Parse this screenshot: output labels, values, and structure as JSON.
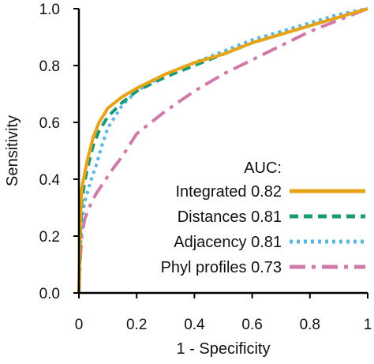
{
  "chart_data": {
    "type": "line",
    "title": "",
    "xlabel": "1 - Specificity",
    "ylabel": "Sensitivity",
    "xlim": [
      0,
      1
    ],
    "ylim": [
      0,
      1
    ],
    "x_ticks": [
      "0",
      "0.2",
      "0.4",
      "0.6",
      "0.8",
      "1"
    ],
    "y_ticks": [
      "0.0",
      "0.2",
      "0.4",
      "0.6",
      "0.8",
      "1.0"
    ],
    "grid": false,
    "legend_title": "AUC:",
    "legend_position": "bottom-right",
    "series": [
      {
        "name": "Integrated 0.82",
        "color": "#E8A317",
        "dash": "solid",
        "points": [
          [
            0,
            0
          ],
          [
            0.005,
            0.25
          ],
          [
            0.01,
            0.37
          ],
          [
            0.02,
            0.42
          ],
          [
            0.03,
            0.47
          ],
          [
            0.05,
            0.55
          ],
          [
            0.07,
            0.6
          ],
          [
            0.1,
            0.65
          ],
          [
            0.15,
            0.69
          ],
          [
            0.2,
            0.72
          ],
          [
            0.3,
            0.77
          ],
          [
            0.4,
            0.81
          ],
          [
            0.5,
            0.84
          ],
          [
            0.6,
            0.88
          ],
          [
            0.7,
            0.91
          ],
          [
            0.8,
            0.94
          ],
          [
            0.9,
            0.97
          ],
          [
            1.0,
            1.0
          ]
        ]
      },
      {
        "name": "Distances 0.81",
        "color": "#1A9A73",
        "dash": "dashed",
        "points": [
          [
            0,
            0
          ],
          [
            0.005,
            0.2
          ],
          [
            0.01,
            0.32
          ],
          [
            0.02,
            0.39
          ],
          [
            0.03,
            0.44
          ],
          [
            0.05,
            0.52
          ],
          [
            0.07,
            0.57
          ],
          [
            0.1,
            0.62
          ],
          [
            0.15,
            0.67
          ],
          [
            0.2,
            0.71
          ],
          [
            0.3,
            0.76
          ],
          [
            0.4,
            0.8
          ],
          [
            0.5,
            0.84
          ],
          [
            0.6,
            0.88
          ],
          [
            0.7,
            0.91
          ],
          [
            0.8,
            0.94
          ],
          [
            0.9,
            0.97
          ],
          [
            1.0,
            1.0
          ]
        ]
      },
      {
        "name": "Adjacency 0.81",
        "color": "#5BB5E0",
        "dash": "dotted",
        "points": [
          [
            0,
            0
          ],
          [
            0.005,
            0.15
          ],
          [
            0.01,
            0.25
          ],
          [
            0.02,
            0.32
          ],
          [
            0.04,
            0.39
          ],
          [
            0.06,
            0.45
          ],
          [
            0.08,
            0.52
          ],
          [
            0.1,
            0.58
          ],
          [
            0.15,
            0.66
          ],
          [
            0.2,
            0.71
          ],
          [
            0.3,
            0.77
          ],
          [
            0.4,
            0.81
          ],
          [
            0.5,
            0.85
          ],
          [
            0.6,
            0.89
          ],
          [
            0.7,
            0.92
          ],
          [
            0.8,
            0.95
          ],
          [
            0.9,
            0.98
          ],
          [
            1.0,
            1.0
          ]
        ]
      },
      {
        "name": "Phyl profiles 0.73",
        "color": "#D17AAA",
        "dash": "dashdot",
        "points": [
          [
            0,
            0
          ],
          [
            0.005,
            0.12
          ],
          [
            0.01,
            0.2
          ],
          [
            0.02,
            0.26
          ],
          [
            0.04,
            0.31
          ],
          [
            0.06,
            0.35
          ],
          [
            0.08,
            0.38
          ],
          [
            0.1,
            0.41
          ],
          [
            0.12,
            0.44
          ],
          [
            0.15,
            0.48
          ],
          [
            0.2,
            0.56
          ],
          [
            0.3,
            0.64
          ],
          [
            0.4,
            0.71
          ],
          [
            0.5,
            0.77
          ],
          [
            0.6,
            0.82
          ],
          [
            0.7,
            0.87
          ],
          [
            0.8,
            0.92
          ],
          [
            0.9,
            0.96
          ],
          [
            1.0,
            1.0
          ]
        ]
      }
    ]
  }
}
